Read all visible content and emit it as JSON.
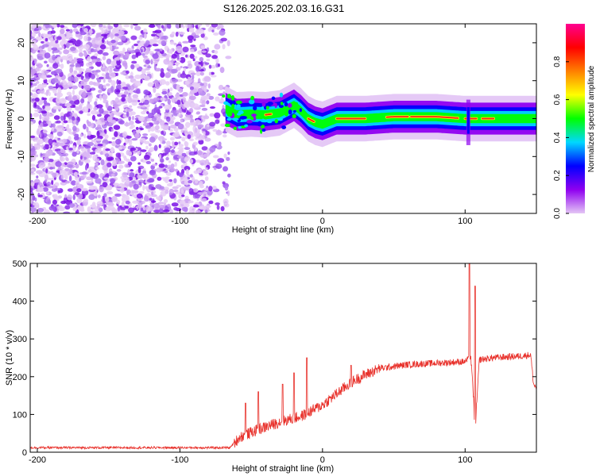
{
  "title": "S126.2025.202.03.16.G31",
  "chart_data": [
    {
      "type": "heatmap",
      "xlabel": "Height of straight line (km)",
      "ylabel": "Frequency (Hz)",
      "xlim": [
        -205,
        150
      ],
      "ylim": [
        -25,
        25
      ],
      "xticks": [
        -200,
        -100,
        0,
        100
      ],
      "yticks": [
        -20,
        -10,
        0,
        10,
        20
      ],
      "colorbar": {
        "label": "Normalized spectral amplitude",
        "range": [
          0,
          1
        ],
        "ticks": [
          "0.0",
          "0.2",
          "0.4",
          "0.6",
          "0.8"
        ],
        "stops": [
          "#e4c6f5",
          "#8f00f0",
          "#0000ff",
          "#00d8ff",
          "#00ff00",
          "#ffff00",
          "#ff8000",
          "#ff0000",
          "#ff0090"
        ]
      },
      "ridge": [
        [
          -70,
          3
        ],
        [
          -60,
          1
        ],
        [
          -50,
          1.2
        ],
        [
          -40,
          1
        ],
        [
          -30,
          1.5
        ],
        [
          -20,
          3.5
        ],
        [
          -15,
          2
        ],
        [
          -10,
          0
        ],
        [
          -5,
          -1
        ],
        [
          0,
          -1.5
        ],
        [
          10,
          0
        ],
        [
          30,
          0
        ],
        [
          50,
          0.5
        ],
        [
          80,
          0.5
        ],
        [
          100,
          0
        ],
        [
          110,
          0
        ],
        [
          150,
          0
        ]
      ],
      "noise_region": [
        -205,
        -65
      ]
    },
    {
      "type": "line",
      "xlabel": "Height of straight line (km)",
      "ylabel": "SNR (10 * v/v)",
      "xlim": [
        -205,
        150
      ],
      "ylim": [
        0,
        500
      ],
      "xticks": [
        -200,
        -100,
        0,
        100
      ],
      "yticks": [
        0,
        100,
        200,
        300,
        400,
        500
      ],
      "color": "#e8302a",
      "trend": [
        [
          -205,
          12
        ],
        [
          -65,
          12
        ],
        [
          -58,
          40
        ],
        [
          -45,
          60
        ],
        [
          -30,
          80
        ],
        [
          -15,
          95
        ],
        [
          0,
          125
        ],
        [
          10,
          155
        ],
        [
          20,
          185
        ],
        [
          30,
          205
        ],
        [
          40,
          222
        ],
        [
          60,
          232
        ],
        [
          80,
          236
        ],
        [
          100,
          240
        ],
        [
          104,
          250
        ],
        [
          106,
          140
        ],
        [
          107,
          25
        ],
        [
          108,
          120
        ],
        [
          110,
          245
        ],
        [
          120,
          250
        ],
        [
          140,
          255
        ],
        [
          146,
          258
        ],
        [
          148,
          180
        ],
        [
          150,
          170
        ]
      ],
      "spikes": [
        [
          -54,
          130
        ],
        [
          -45,
          160
        ],
        [
          -28,
          180
        ],
        [
          -20,
          210
        ],
        [
          -11,
          250
        ],
        [
          20,
          230
        ],
        [
          103,
          500
        ],
        [
          107,
          440
        ]
      ]
    }
  ]
}
